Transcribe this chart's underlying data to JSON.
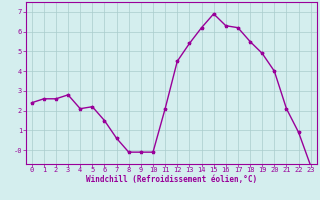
{
  "x": [
    0,
    1,
    2,
    3,
    4,
    5,
    6,
    7,
    8,
    9,
    10,
    11,
    12,
    13,
    14,
    15,
    16,
    17,
    18,
    19,
    20,
    21,
    22,
    23
  ],
  "y": [
    2.4,
    2.6,
    2.6,
    2.8,
    2.1,
    2.2,
    1.5,
    0.6,
    -0.1,
    -0.1,
    -0.1,
    2.1,
    4.5,
    5.4,
    6.2,
    6.9,
    6.3,
    6.2,
    5.5,
    4.9,
    4.0,
    2.1,
    0.9,
    -0.8
  ],
  "line_color": "#990099",
  "marker": "*",
  "marker_size": 2.5,
  "bg_color": "#d4eeee",
  "grid_color": "#aacccc",
  "xlabel": "Windchill (Refroidissement éolien,°C)",
  "xlabel_color": "#990099",
  "tick_color": "#990099",
  "ylim": [
    -0.7,
    7.5
  ],
  "xlim": [
    -0.5,
    23.5
  ],
  "yticks": [
    7,
    6,
    5,
    4,
    3,
    2,
    1,
    0
  ],
  "ytick_labels": [
    "7",
    "6",
    "5",
    "4",
    "3",
    "2",
    "1",
    "-0"
  ],
  "xticks": [
    0,
    1,
    2,
    3,
    4,
    5,
    6,
    7,
    8,
    9,
    10,
    11,
    12,
    13,
    14,
    15,
    16,
    17,
    18,
    19,
    20,
    21,
    22,
    23
  ],
  "spine_color": "#990099",
  "line_width": 1.0,
  "tick_fontsize": 5.0,
  "xlabel_fontsize": 5.5
}
